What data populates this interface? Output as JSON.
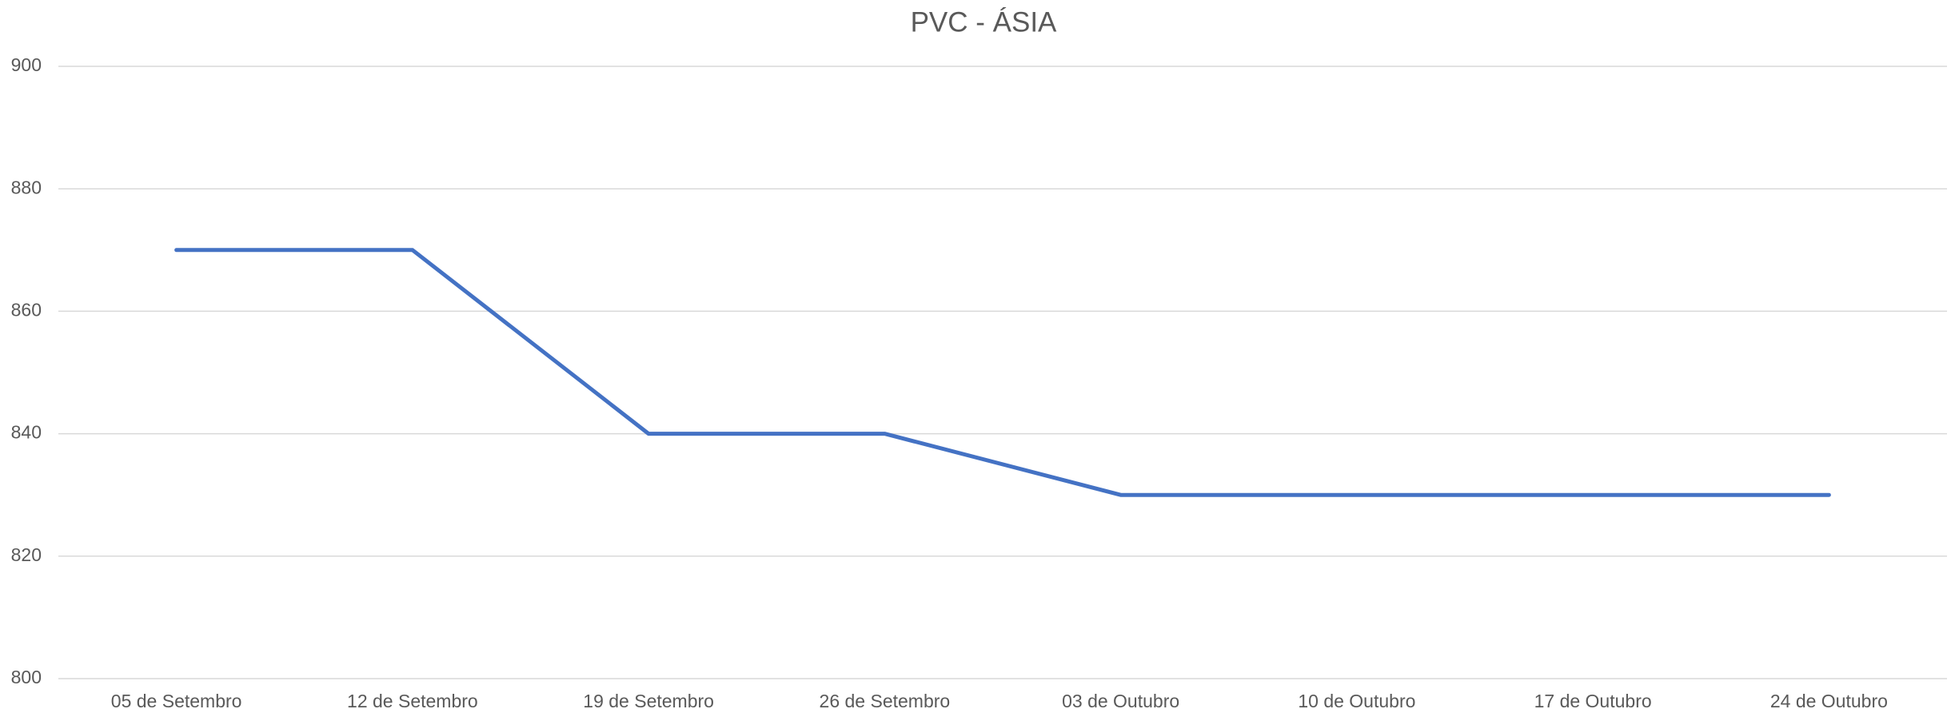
{
  "chart_data": {
    "type": "line",
    "title": "PVC - ÁSIA",
    "categories": [
      "05 de Setembro",
      "12 de Setembro",
      "19 de Setembro",
      "26 de Setembro",
      "03 de Outubro",
      "10 de Outubro",
      "17 de Outubro",
      "24 de Outubro"
    ],
    "series": [
      {
        "name": "PVC - ÁSIA",
        "color": "#4472c4",
        "values": [
          870,
          870,
          840,
          840,
          830,
          830,
          830,
          830
        ]
      }
    ],
    "ylim": [
      800,
      900
    ],
    "yticks": [
      800,
      820,
      840,
      860,
      880,
      900
    ],
    "grid": true
  }
}
